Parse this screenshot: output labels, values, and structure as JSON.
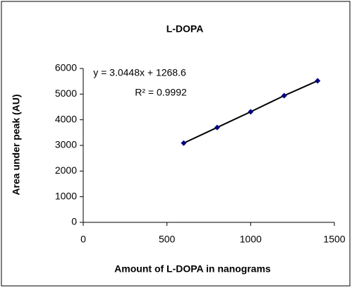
{
  "chart_data": {
    "type": "scatter",
    "title": "L-DOPA",
    "x_label": "Amount of L-DOPA in nanograms",
    "y_label": "Area under peak (AU)",
    "annotations": [
      "y = 3.0448x + 1268.6",
      "R² = 0.9992"
    ],
    "series": [
      {
        "name": "L-DOPA",
        "color": "#000080",
        "line_color": "#000000",
        "x": [
          600,
          800,
          1000,
          1200,
          1400
        ],
        "values": [
          3090,
          3700,
          4310,
          4940,
          5520
        ]
      }
    ],
    "xlim": [
      0,
      1500
    ],
    "xticks": [
      0,
      500,
      1000,
      1500
    ],
    "ylim": [
      0,
      6000
    ],
    "yticks": [
      0,
      1000,
      2000,
      3000,
      4000,
      5000,
      6000
    ],
    "grid": false
  }
}
